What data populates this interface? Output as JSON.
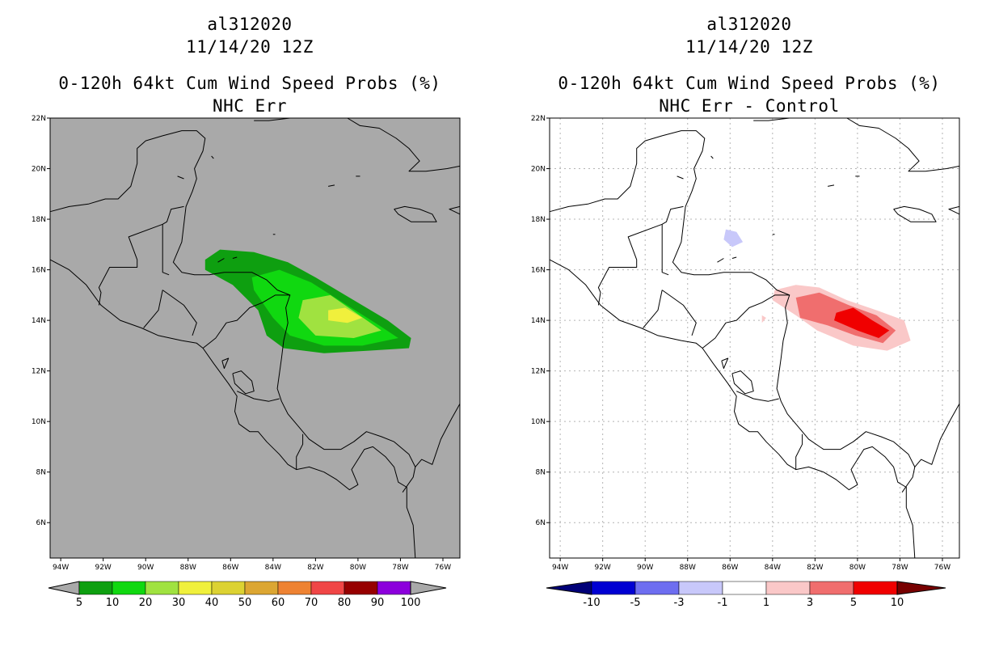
{
  "panels": [
    {
      "id": "left",
      "storm_id": "al312020",
      "datetime": "11/14/20 12Z",
      "product": "0-120h 64kt Cum Wind Speed Probs (%)",
      "subtitle": "NHC Err",
      "background_color": "#a9a9a9",
      "colorbar_labels": [
        "5",
        "10",
        "20",
        "30",
        "40",
        "50",
        "60",
        "70",
        "80",
        "90",
        "100"
      ],
      "colorbar_colors": [
        "#0e9f10",
        "#10d810",
        "#a0e240",
        "#f0f03c",
        "#dcd232",
        "#dca632",
        "#ee8232",
        "#f04646",
        "#960000",
        "#8c00dc"
      ]
    },
    {
      "id": "right",
      "storm_id": "al312020",
      "datetime": "11/14/20 12Z",
      "product": "0-120h 64kt Cum Wind Speed Probs (%)",
      "subtitle": "NHC Err - Control",
      "background_color": "#ffffff",
      "colorbar_labels": [
        "-10",
        "-5",
        "-3",
        "-1",
        "1",
        "3",
        "5",
        "10"
      ],
      "colorbar_colors": [
        "#0000d2",
        "#6e6ef0",
        "#c8c8fa",
        "#ffffff",
        "#fac8c8",
        "#f06e6e",
        "#f00000"
      ]
    }
  ],
  "axes": {
    "lat_labels": [
      "22N",
      "20N",
      "18N",
      "16N",
      "14N",
      "12N",
      "10N",
      "8N",
      "6N"
    ],
    "lon_labels": [
      "94W",
      "92W",
      "90W",
      "88W",
      "86W",
      "84W",
      "82W",
      "80W",
      "78W",
      "76W"
    ]
  },
  "map_extent": {
    "lon_min": -94.5,
    "lon_max": -75.2,
    "lat_min": 4.6,
    "lat_max": 22.0
  }
}
